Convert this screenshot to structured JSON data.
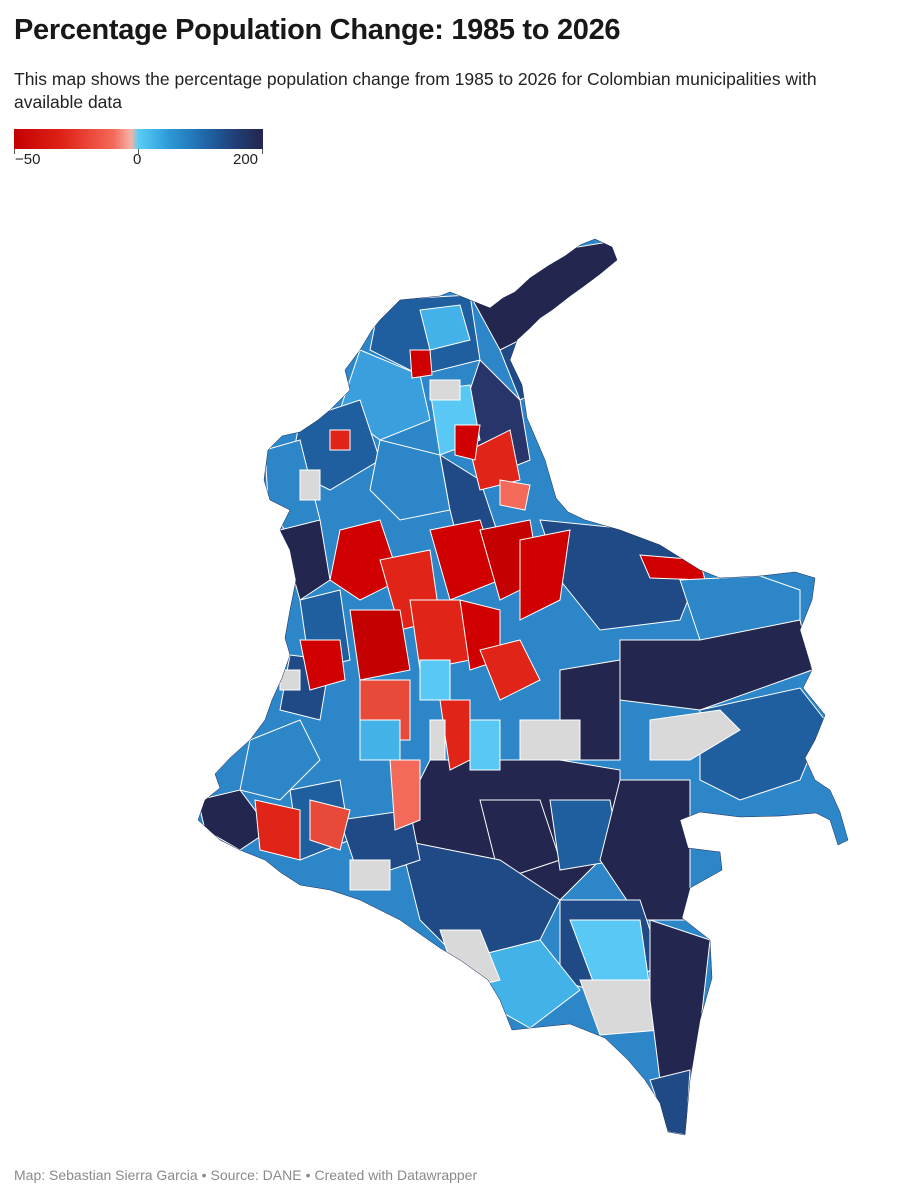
{
  "title": "Percentage Population Change: 1985 to 2026",
  "subtitle": "This map shows the percentage population change from 1985 to 2026 for Colombian municipalities with available data",
  "legend": {
    "min_label": "−50",
    "mid_label": "0",
    "max_label": "200",
    "min_value": -50,
    "mid_value": 0,
    "max_value": 200,
    "colors": [
      "#c40000",
      "#f46a5a",
      "#58cdf6",
      "#2e9ad8",
      "#203e76",
      "#23264e"
    ]
  },
  "map": {
    "country": "Colombia",
    "no_data_color": "#d9d9d9",
    "border_color": "#ffffff"
  },
  "footer": {
    "map_credit": "Map: Sebastian Sierra Garcia",
    "source": "Source: DANE",
    "tool": "Created with Datawrapper"
  }
}
